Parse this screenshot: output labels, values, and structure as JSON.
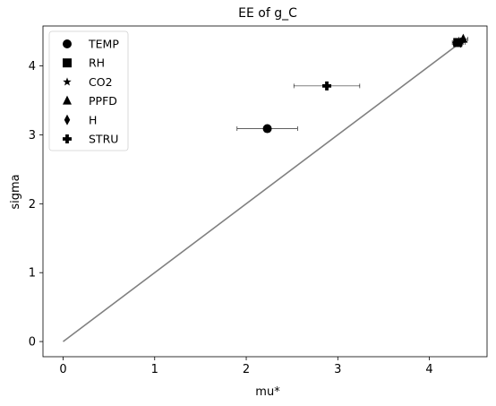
{
  "chart_data": {
    "type": "scatter",
    "title": "EE of g_C",
    "xlabel": "mu*",
    "ylabel": "sigma",
    "xlim": [
      -0.22,
      4.63
    ],
    "ylim": [
      -0.22,
      4.58
    ],
    "xticks": [
      0,
      1,
      2,
      3,
      4
    ],
    "yticks": [
      0,
      1,
      2,
      3,
      4
    ],
    "grid": false,
    "legend_position": "top-left",
    "reference_line": {
      "from": [
        0,
        0
      ],
      "to": [
        4.38,
        4.38
      ],
      "color": "#808080"
    },
    "series": [
      {
        "name": "TEMP",
        "marker": "circle",
        "x": 2.23,
        "y": 3.09,
        "xerr": 0.33
      },
      {
        "name": "RH",
        "marker": "square",
        "x": 4.31,
        "y": 4.34,
        "xerr": 0.06
      },
      {
        "name": "CO2",
        "marker": "star",
        "x": 4.31,
        "y": 4.33,
        "xerr": 0.05
      },
      {
        "name": "PPFD",
        "marker": "triangle",
        "x": 4.37,
        "y": 4.39,
        "xerr": 0.05
      },
      {
        "name": "H",
        "marker": "diamond",
        "x": 4.34,
        "y": 4.34,
        "xerr": 0.05
      },
      {
        "name": "STRU",
        "marker": "plus",
        "x": 2.88,
        "y": 3.71,
        "xerr": 0.36
      }
    ]
  }
}
